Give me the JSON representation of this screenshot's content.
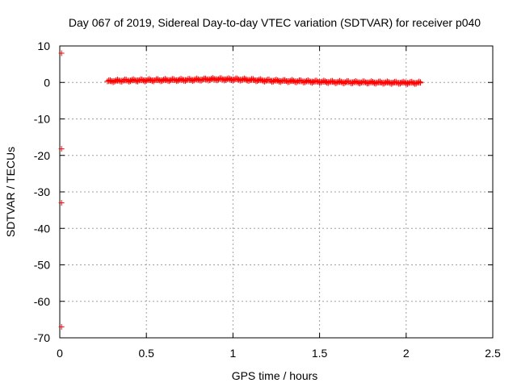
{
  "chart_data": {
    "type": "scatter",
    "title": "Day 067 of 2019, Sidereal Day-to-day VTEC variation (SDTVAR) for receiver p040",
    "xlabel": "GPS time / hours",
    "ylabel": "SDTVAR / TECUs",
    "xlim": [
      0,
      2.5
    ],
    "ylim": [
      -70,
      10
    ],
    "xticks": [
      0,
      0.5,
      1,
      1.5,
      2,
      2.5
    ],
    "xtick_labels": [
      "0",
      "0.5",
      "1",
      "1.5",
      "2",
      "2.5"
    ],
    "yticks": [
      10,
      0,
      -10,
      -20,
      -30,
      -40,
      -50,
      -60,
      -70
    ],
    "ytick_labels": [
      "10",
      "0",
      "-10",
      "-20",
      "-30",
      "-40",
      "-50",
      "-60",
      "-70"
    ],
    "grid": true,
    "marker": "+",
    "series": [
      {
        "name": "SDTVAR",
        "color": "#ff0000",
        "outliers": [
          {
            "x": 0.01,
            "y": 8.0
          },
          {
            "x": 0.01,
            "y": -18.2
          },
          {
            "x": 0.01,
            "y": -33.0
          },
          {
            "x": 0.01,
            "y": -67.0
          }
        ],
        "band": {
          "x_start": 0.275,
          "x_end": 2.085,
          "x_step": 0.00833,
          "profile": [
            [
              0.275,
              0.3
            ],
            [
              0.35,
              0.5
            ],
            [
              0.5,
              0.6
            ],
            [
              0.75,
              0.7
            ],
            [
              0.9,
              0.9
            ],
            [
              1.05,
              0.8
            ],
            [
              1.2,
              0.5
            ],
            [
              1.4,
              0.3
            ],
            [
              1.6,
              0.1
            ],
            [
              1.8,
              0.0
            ],
            [
              2.0,
              -0.1
            ],
            [
              2.085,
              -0.1
            ]
          ]
        }
      }
    ]
  }
}
